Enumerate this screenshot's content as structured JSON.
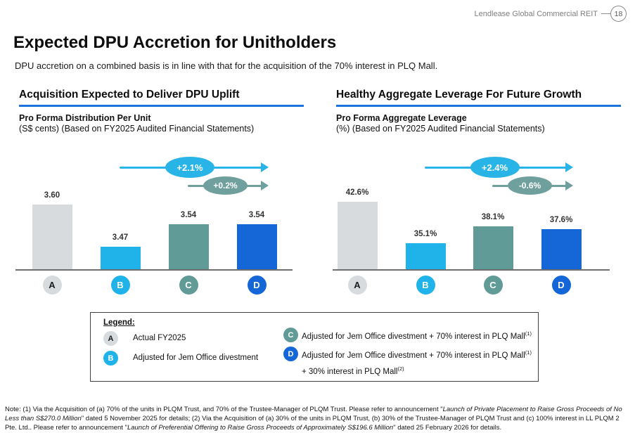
{
  "header": {
    "brand": "Lendlease Global Commercial REIT",
    "page_number": "18"
  },
  "title": "Expected DPU Accretion for Unitholders",
  "subtitle": "DPU accretion on a combined basis is in line with that for the acquisition of the 70% interest in PLQ Mall.",
  "colors": {
    "section_underline": "#1B74DC",
    "axis_line": "#6e6e6e",
    "header_gray": "#7f7f7f",
    "category_fills": [
      "#D7DBDE",
      "#1FB3E9",
      "#619B98",
      "#1566D6"
    ],
    "category_letter_colors": [
      "#1a1a1a",
      "#ffffff",
      "#ffffff",
      "#ffffff"
    ]
  },
  "chart_data": [
    {
      "type": "bar",
      "panel_title": "Acquisition Expected to Deliver DPU Uplift",
      "measure_title": "Pro Forma Distribution Per Unit",
      "measure_subtitle": "(S$ cents) (Based on FY2025 Audited Financial Statements)",
      "categories": [
        "A",
        "B",
        "C",
        "D"
      ],
      "values": [
        3.6,
        3.47,
        3.54,
        3.54
      ],
      "value_labels": [
        "3.60",
        "3.47",
        "3.54",
        "3.54"
      ],
      "ylim": [
        3.4,
        3.65
      ],
      "grid": false,
      "annotations": [
        {
          "label": "+2.1%",
          "color": "#29B4E8",
          "from": "B",
          "to": "D"
        },
        {
          "label": "+0.2%",
          "color": "#6FA09E",
          "from": "C",
          "to": "D"
        }
      ]
    },
    {
      "type": "bar",
      "panel_title": "Healthy Aggregate Leverage For Future Growth",
      "measure_title": "Pro Forma Aggregate Leverage",
      "measure_subtitle": "(%) (Based on FY2025 Audited Financial Statements)",
      "categories": [
        "A",
        "B",
        "C",
        "D"
      ],
      "values": [
        42.6,
        35.1,
        38.1,
        37.6
      ],
      "value_labels": [
        "42.6%",
        "35.1%",
        "38.1%",
        "37.6%"
      ],
      "ylim": [
        30.4,
        45
      ],
      "grid": false,
      "annotations": [
        {
          "label": "+2.4%",
          "color": "#29B4E8",
          "from": "B",
          "to": "D"
        },
        {
          "label": "-0.6%",
          "color": "#6FA09E",
          "from": "C",
          "to": "D"
        }
      ]
    }
  ],
  "legend": {
    "title": "Legend:",
    "items": [
      {
        "letter": "A",
        "label": "Actual FY2025",
        "sup": ""
      },
      {
        "letter": "B",
        "label": "Adjusted for Jem Office divestment",
        "sup": ""
      },
      {
        "letter": "C",
        "label": "Adjusted for Jem Office divestment + 70% interest in PLQ Mall",
        "sup": "(1)"
      },
      {
        "letter": "D",
        "label": "Adjusted for Jem Office divestment + 70% interest in PLQ Mall",
        "sup": "(1)",
        "label2": "+ 30% interest in PLQ Mall",
        "sup2": "(2)"
      }
    ]
  },
  "footnote": {
    "segments": [
      {
        "text": "Note: (1) Via the Acquisition of (a) 70% of the units in PLQM Trust, and 70% of the Trustee-Manager of PLQM Trust. Please refer to announcement \"",
        "italic": false
      },
      {
        "text": "Launch of Private Placement to Raise Gross Proceeds of No Less than S$270.0 Million",
        "italic": true
      },
      {
        "text": "\" dated 5 November 2025 for details; (2) Via the Acquisition of (a) 30% of the units in PLQM Trust, (b) 30% of the Trustee-Manager of PLQM Trust and (c) 100% interest in LL PLQM 2 Pte. Ltd.. Please refer to announcement \"",
        "italic": false
      },
      {
        "text": "Launch of Preferential Offering to Raise Gross Proceeds of Approximately S$196.6 Million",
        "italic": true
      },
      {
        "text": "\" dated 25 February 2026 for details.",
        "italic": false
      }
    ]
  }
}
